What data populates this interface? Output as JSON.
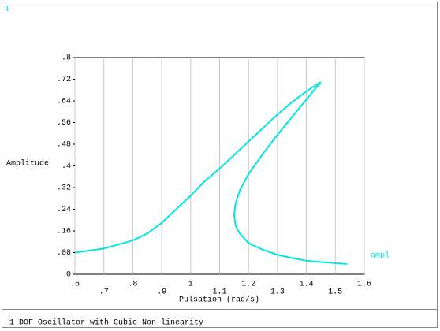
{
  "window_label": "1",
  "chart_data": {
    "type": "line",
    "title": "1-DOF Oscillator with Cubic Non-linearity",
    "xlabel": "Pulsation (rad/s)",
    "ylabel": "Amplitude",
    "x": [
      0.6,
      0.7,
      0.8,
      0.85,
      0.9,
      0.95,
      1.0,
      1.05,
      1.1,
      1.15,
      1.2,
      1.25,
      1.3,
      1.35,
      1.4,
      1.45,
      1.4,
      1.35,
      1.3,
      1.25,
      1.2,
      1.17,
      1.155,
      1.15,
      1.155,
      1.17,
      1.2,
      1.25,
      1.3,
      1.35,
      1.4,
      1.45,
      1.54
    ],
    "series": [
      {
        "name": "ampl",
        "color": "#00e5e5",
        "values": [
          0.08,
          0.095,
          0.125,
          0.15,
          0.19,
          0.24,
          0.29,
          0.345,
          0.39,
          0.44,
          0.49,
          0.54,
          0.59,
          0.635,
          0.675,
          0.71,
          0.645,
          0.58,
          0.515,
          0.445,
          0.37,
          0.31,
          0.26,
          0.22,
          0.18,
          0.15,
          0.115,
          0.09,
          0.072,
          0.06,
          0.05,
          0.045,
          0.038
        ]
      }
    ],
    "xlim": [
      0.6,
      1.6
    ],
    "xticks": [
      {
        "value": 0.6,
        "label": ".6"
      },
      {
        "value": 0.7,
        "label": ".7"
      },
      {
        "value": 0.8,
        "label": ".8"
      },
      {
        "value": 0.9,
        "label": ".9"
      },
      1,
      1.1,
      1.2,
      1.3,
      1.4,
      1.5,
      1.6
    ],
    "ylim": [
      0,
      0.8
    ],
    "yticks": [
      0,
      {
        "value": 0.08,
        "label": ".08"
      },
      {
        "value": 0.16,
        "label": ".16"
      },
      {
        "value": 0.24,
        "label": ".24"
      },
      {
        "value": 0.32,
        "label": ".32"
      },
      {
        "value": 0.4,
        "label": ".4"
      },
      {
        "value": 0.48,
        "label": ".48"
      },
      {
        "value": 0.56,
        "label": ".56"
      },
      {
        "value": 0.64,
        "label": ".64"
      },
      {
        "value": 0.72,
        "label": ".72"
      },
      {
        "value": 0.8,
        "label": ".8"
      }
    ],
    "grid": "x"
  }
}
